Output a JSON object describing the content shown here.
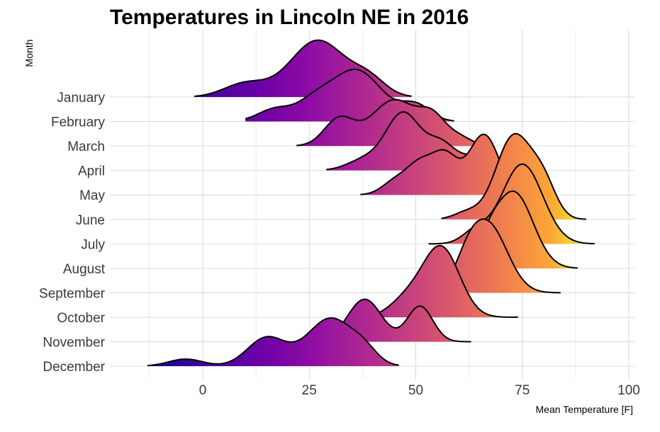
{
  "chart_data": {
    "type": "ridgeline",
    "title": "Temperatures in Lincoln NE in 2016",
    "xlabel": "Mean Temperature [F]",
    "ylabel": "Month",
    "xlim": [
      -13,
      101
    ],
    "x_ticks": [
      0,
      25,
      50,
      75,
      100
    ],
    "x_tick_labels": [
      "0",
      "25",
      "50",
      "75",
      "100"
    ],
    "grid": true,
    "legend": "none",
    "fill_colorscale": "plasma",
    "fill_range": [
      -13,
      91
    ],
    "categories": [
      "January",
      "February",
      "March",
      "April",
      "May",
      "June",
      "July",
      "August",
      "September",
      "October",
      "November",
      "December"
    ],
    "series": [
      {
        "name": "January",
        "range": [
          -2,
          49
        ],
        "peaks": [
          {
            "x": 10,
            "h": 0.38,
            "s": 5
          },
          {
            "x": 27,
            "h": 1.6,
            "s": 6.5
          },
          {
            "x": 39,
            "h": 0.45,
            "s": 4
          }
        ]
      },
      {
        "name": "February",
        "range": [
          10,
          59
        ],
        "peaks": [
          {
            "x": 17,
            "h": 0.35,
            "s": 4
          },
          {
            "x": 26,
            "h": 0.45,
            "s": 4
          },
          {
            "x": 36,
            "h": 1.45,
            "s": 6
          },
          {
            "x": 50,
            "h": 0.45,
            "s": 3.5
          }
        ]
      },
      {
        "name": "March",
        "range": [
          22,
          66
        ],
        "peaks": [
          {
            "x": 32,
            "h": 0.75,
            "s": 3.5
          },
          {
            "x": 45,
            "h": 1.3,
            "s": 5.5
          },
          {
            "x": 54,
            "h": 0.65,
            "s": 3
          },
          {
            "x": 60,
            "h": 0.25,
            "s": 3
          }
        ]
      },
      {
        "name": "April",
        "range": [
          29,
          69
        ],
        "peaks": [
          {
            "x": 38,
            "h": 0.3,
            "s": 4
          },
          {
            "x": 47,
            "h": 1.6,
            "s": 4
          },
          {
            "x": 56,
            "h": 0.75,
            "s": 3.5
          },
          {
            "x": 64,
            "h": 0.35,
            "s": 3
          }
        ]
      },
      {
        "name": "May",
        "range": [
          37,
          75
        ],
        "peaks": [
          {
            "x": 45,
            "h": 0.35,
            "s": 3
          },
          {
            "x": 51,
            "h": 0.85,
            "s": 3.2
          },
          {
            "x": 57,
            "h": 1.05,
            "s": 3
          },
          {
            "x": 66,
            "h": 1.7,
            "s": 3.5
          }
        ]
      },
      {
        "name": "June",
        "range": [
          56,
          90
        ],
        "peaks": [
          {
            "x": 62,
            "h": 0.2,
            "s": 3
          },
          {
            "x": 73,
            "h": 2.35,
            "s": 4.2
          },
          {
            "x": 80,
            "h": 0.9,
            "s": 3
          }
        ]
      },
      {
        "name": "July",
        "range": [
          53,
          92
        ],
        "peaks": [
          {
            "x": 64,
            "h": 0.35,
            "s": 3
          },
          {
            "x": 75,
            "h": 2.25,
            "s": 4.8
          }
        ]
      },
      {
        "name": "August",
        "range": [
          63,
          88
        ],
        "peaks": [
          {
            "x": 67,
            "h": 0.45,
            "s": 2.5
          },
          {
            "x": 73,
            "h": 2.15,
            "s": 4.5
          }
        ]
      },
      {
        "name": "September",
        "range": [
          56,
          84
        ],
        "peaks": [
          {
            "x": 62,
            "h": 0.55,
            "s": 3
          },
          {
            "x": 67,
            "h": 1.9,
            "s": 4.5
          }
        ]
      },
      {
        "name": "October",
        "range": [
          38,
          74
        ],
        "peaks": [
          {
            "x": 48,
            "h": 0.5,
            "s": 4
          },
          {
            "x": 56,
            "h": 1.95,
            "s": 4.3
          }
        ]
      },
      {
        "name": "November",
        "range": [
          31,
          63
        ],
        "peaks": [
          {
            "x": 38,
            "h": 1.2,
            "s": 4
          },
          {
            "x": 51,
            "h": 1.0,
            "s": 3
          }
        ]
      },
      {
        "name": "December",
        "range": [
          -13,
          46
        ],
        "peaks": [
          {
            "x": -4,
            "h": 0.2,
            "s": 4
          },
          {
            "x": 15,
            "h": 0.8,
            "s": 4.5
          },
          {
            "x": 30,
            "h": 1.35,
            "s": 5.5
          },
          {
            "x": 38,
            "h": 0.3,
            "s": 3
          }
        ]
      }
    ]
  }
}
